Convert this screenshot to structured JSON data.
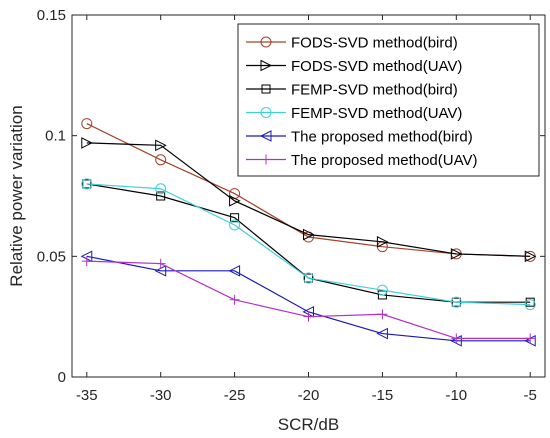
{
  "chart_data": {
    "type": "line",
    "title": "",
    "xlabel": "SCR/dB",
    "ylabel": "Relative power variation",
    "x": [
      -35,
      -30,
      -25,
      -20,
      -15,
      -10,
      -5
    ],
    "xlim": [
      -36,
      -4
    ],
    "ylim": [
      0,
      0.15
    ],
    "xticks": [
      -35,
      -30,
      -25,
      -20,
      -15,
      -10,
      -5
    ],
    "yticks": [
      0,
      0.05,
      0.1,
      0.15
    ],
    "xtick_labels": [
      "-35",
      "-30",
      "-25",
      "-20",
      "-15",
      "-10",
      "-5"
    ],
    "ytick_labels": [
      "0",
      "0.05",
      "0.1",
      "0.15"
    ],
    "grid": false,
    "legend_position": "top-right",
    "series": [
      {
        "name": "FODS-SVD method(bird)",
        "values": [
          0.105,
          0.09,
          0.076,
          0.058,
          0.054,
          0.051,
          0.05
        ],
        "color": "#a0442c",
        "marker": "circle"
      },
      {
        "name": "FODS-SVD method(UAV)",
        "values": [
          0.097,
          0.096,
          0.073,
          0.059,
          0.056,
          0.051,
          0.05
        ],
        "color": "#000000",
        "marker": "triangle-right"
      },
      {
        "name": "FEMP-SVD method(bird)",
        "values": [
          0.08,
          0.075,
          0.066,
          0.041,
          0.034,
          0.031,
          0.031
        ],
        "color": "#000000",
        "marker": "square"
      },
      {
        "name": "FEMP-SVD method(UAV)",
        "values": [
          0.08,
          0.078,
          0.063,
          0.041,
          0.036,
          0.031,
          0.03
        ],
        "color": "#40d0d8",
        "marker": "circle"
      },
      {
        "name": "The proposed method(bird)",
        "values": [
          0.05,
          0.044,
          0.044,
          0.027,
          0.018,
          0.015,
          0.015
        ],
        "color": "#1a1ab8",
        "marker": "triangle-left"
      },
      {
        "name": "The proposed method(UAV)",
        "values": [
          0.048,
          0.047,
          0.032,
          0.025,
          0.026,
          0.016,
          0.016
        ],
        "color": "#b030c8",
        "marker": "plus"
      }
    ]
  }
}
